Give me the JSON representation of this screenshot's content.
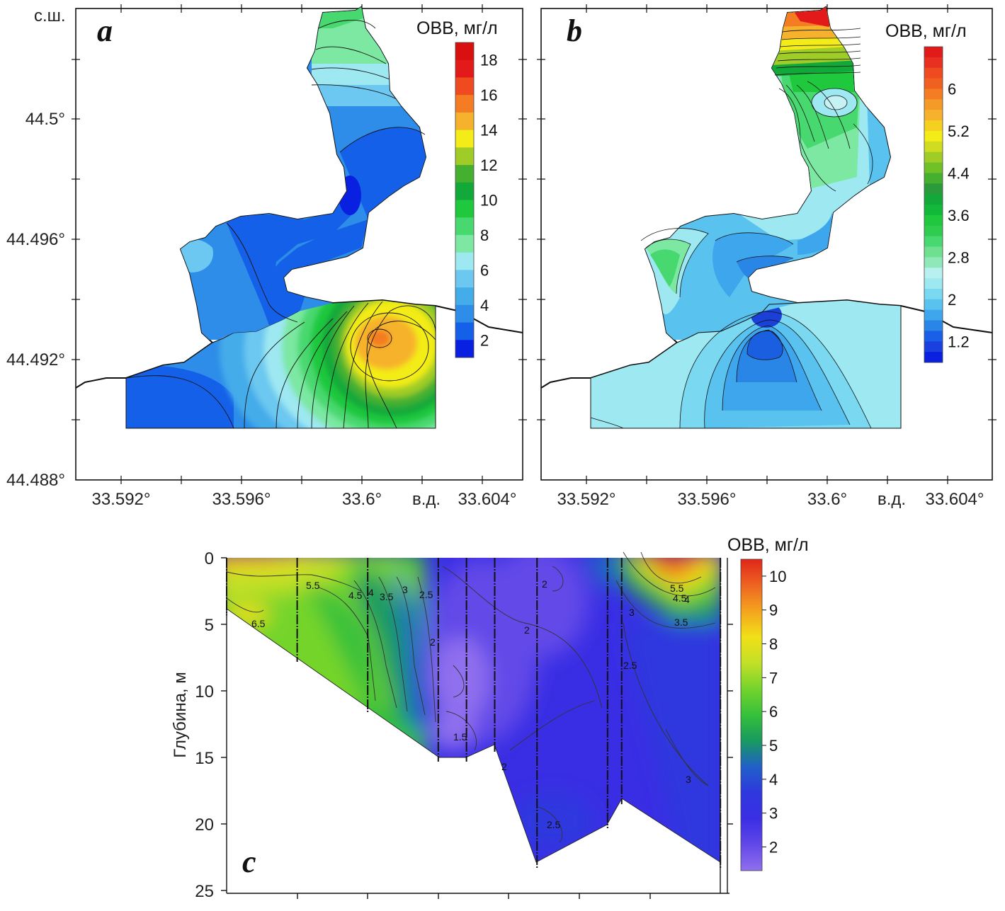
{
  "chart_data": [
    {
      "type": "heatmap",
      "panel": "a",
      "colorbar_title": "OBB, мг/л",
      "colorbar_ticks": [
        2,
        4,
        6,
        8,
        10,
        12,
        14,
        16,
        18
      ],
      "colorbar_range": [
        1,
        19
      ],
      "ylabel_unit": "с.ш.",
      "xlabel_unit": "в.д.",
      "x_tick_labels": [
        "33.592°",
        "33.596°",
        "33.6°",
        "33.604°"
      ],
      "y_tick_labels": [
        "44.5°",
        "44.496°",
        "44.492°",
        "44.488°"
      ],
      "xlim": [
        33.5905,
        33.6045
      ],
      "ylim": [
        44.488,
        44.5039
      ],
      "observed": [
        {
          "area": "north tip",
          "value": 10
        },
        {
          "area": "upper channel",
          "value": 5
        },
        {
          "area": "central channel",
          "value": 3
        },
        {
          "area": "channel minimum",
          "value": 2
        },
        {
          "area": "western bay",
          "value": 5
        },
        {
          "area": "southwest",
          "value": 3
        },
        {
          "area": "southeast maximum",
          "value": 17
        },
        {
          "area": "east",
          "value": 14
        }
      ]
    },
    {
      "type": "heatmap",
      "panel": "b",
      "colorbar_title": "OBB, мг/л",
      "colorbar_ticks": [
        1.2,
        2,
        2.8,
        3.6,
        4.4,
        5.2,
        6
      ],
      "colorbar_range": [
        0.8,
        6.8
      ],
      "ylabel_unit": "",
      "xlabel_unit": "в.д.",
      "x_tick_labels": [
        "33.592°",
        "33.596°",
        "33.6°",
        "33.604°"
      ],
      "y_tick_labels": [],
      "xlim": [
        33.5905,
        33.6045
      ],
      "ylim": [
        44.488,
        44.5039
      ],
      "observed": [
        {
          "area": "north tip",
          "value": 6.7
        },
        {
          "area": "upper channel",
          "value": 4.2
        },
        {
          "area": "channel local minimum",
          "value": 2.6
        },
        {
          "area": "central channel",
          "value": 2.2
        },
        {
          "area": "western bay",
          "value": 3.3
        },
        {
          "area": "south-central minimum",
          "value": 0.9
        },
        {
          "area": "southern open water",
          "value": 2.4
        }
      ]
    },
    {
      "type": "heatmap",
      "panel": "c",
      "colorbar_title": "OBB, мг/л",
      "colorbar_ticks": [
        2,
        3,
        4,
        5,
        6,
        7,
        8,
        9,
        10
      ],
      "colorbar_range": [
        1.3,
        10.5
      ],
      "ylabel": "Глубина, м",
      "y_ticks": [
        0,
        5,
        10,
        15,
        20,
        25
      ],
      "ylim": [
        0,
        25
      ],
      "stations": [
        {
          "index": 0,
          "bottom_depth": 4
        },
        {
          "index": 1,
          "bottom_depth": 7.5
        },
        {
          "index": 2,
          "bottom_depth": 11.3
        },
        {
          "index": 3,
          "bottom_depth": 15
        },
        {
          "index": 3.4,
          "bottom_depth": 15
        },
        {
          "index": 3.8,
          "bottom_depth": 14.3
        },
        {
          "index": 4.4,
          "bottom_depth": 23
        },
        {
          "index": 5.4,
          "bottom_depth": 20
        },
        {
          "index": 5.6,
          "bottom_depth": 18.2
        },
        {
          "index": 7,
          "bottom_depth": 23
        }
      ],
      "contour_labels": [
        "6.5",
        "5.5",
        "4.5",
        "4",
        "3.5",
        "3",
        "2.5",
        "2",
        "2",
        "2",
        "1.5",
        "2",
        "2.5",
        "5.5",
        "4.5",
        "4",
        "3",
        "3.5",
        "2.5",
        "3"
      ]
    }
  ],
  "panels": {
    "a": {
      "letter": "a",
      "colorbar_title": "OBB, мг/л",
      "cb_labels": [
        "18",
        "16",
        "14",
        "12",
        "10",
        "8",
        "6",
        "4",
        "2"
      ],
      "ylabel": "с.ш.",
      "xlabel": "в.д.",
      "xticks": [
        "33.592°",
        "33.596°",
        "33.6°",
        "33.604°"
      ],
      "yticks": [
        "44.5°",
        "44.496°",
        "44.492°",
        "44.488°"
      ]
    },
    "b": {
      "letter": "b",
      "colorbar_title": "OBB, мг/л",
      "cb_labels": [
        "6",
        "5.2",
        "4.4",
        "3.6",
        "2.8",
        "2",
        "1.2"
      ],
      "xlabel": "в.д.",
      "xticks": [
        "33.592°",
        "33.596°",
        "33.6°",
        "33.604°"
      ]
    },
    "c": {
      "letter": "c",
      "colorbar_title": "OBB, мг/л",
      "cb_labels": [
        "10",
        "9",
        "8",
        "7",
        "6",
        "5",
        "4",
        "3",
        "2"
      ],
      "ylabel": "Глубина, м",
      "yticks": [
        "0",
        "5",
        "10",
        "15",
        "20",
        "25"
      ]
    }
  },
  "colors": {
    "jet_a": [
      "#0a20e0",
      "#1560e8",
      "#2d8de8",
      "#45acea",
      "#6cc8f0",
      "#9ee8f2",
      "#7ce8a2",
      "#48d870",
      "#1fc83c",
      "#12a83a",
      "#45b030",
      "#a0cc28",
      "#f3ec18",
      "#f6b22c",
      "#f47c22",
      "#ef4a20",
      "#e21a1a"
    ],
    "section": [
      "#9070ee",
      "#6248e8",
      "#3a2ee4",
      "#2f38de",
      "#2060c8",
      "#189a60",
      "#36c03a",
      "#74d42c",
      "#c2e028",
      "#f0e018",
      "#f5a41e",
      "#ee6422",
      "#e0261a"
    ]
  }
}
